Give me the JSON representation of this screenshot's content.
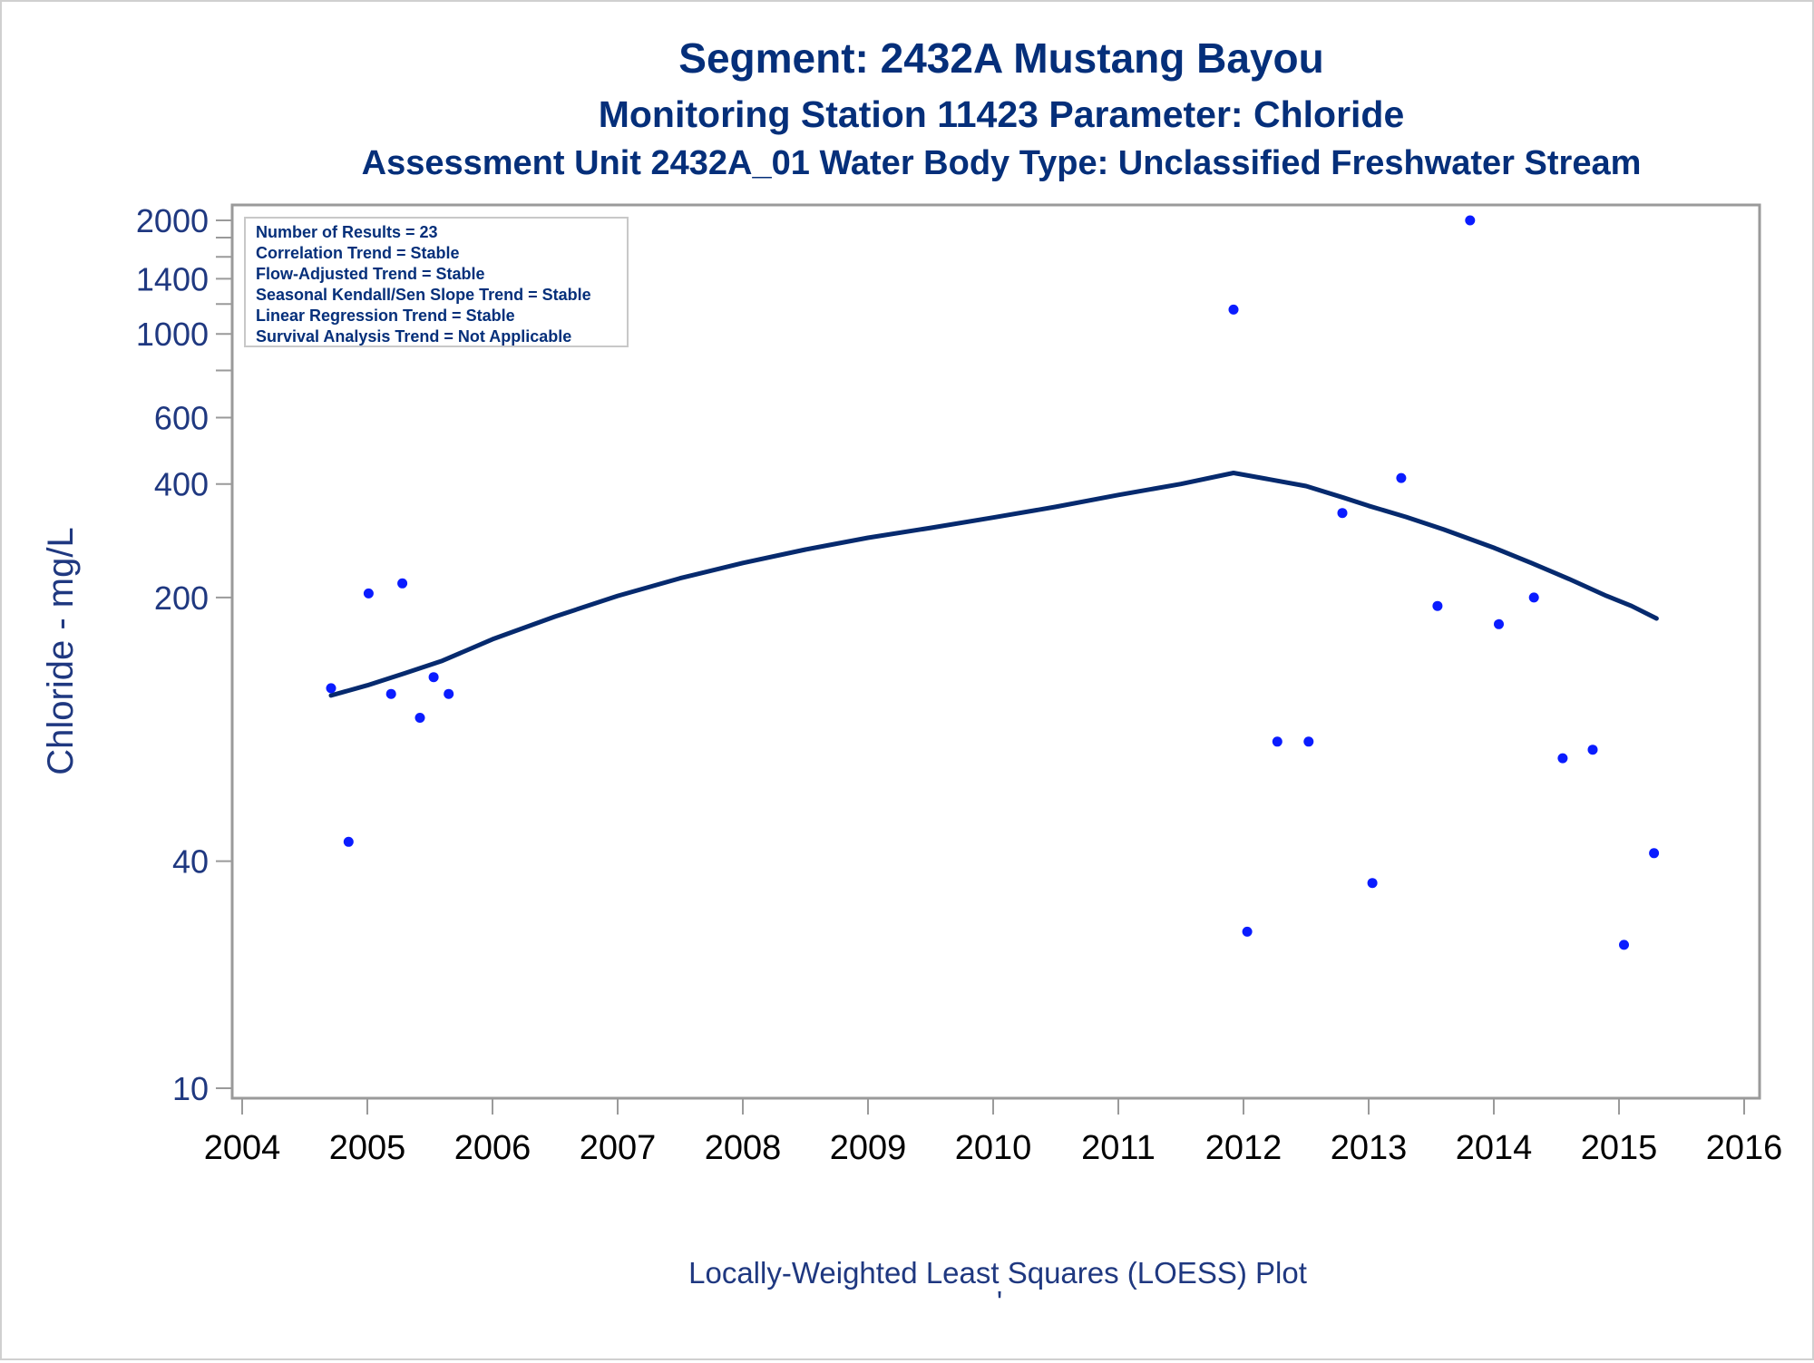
{
  "titles": {
    "line1": "Segment: 2432A  Mustang Bayou",
    "line2": "Monitoring Station 11423 Parameter: Chloride",
    "line3": "Assessment Unit 2432A_01   Water Body Type: Unclassified Freshwater Stream"
  },
  "inset_box": {
    "lines": [
      "Number of Results = 23",
      "Correlation Trend = Stable",
      "Flow-Adjusted Trend = Stable",
      "Seasonal Kendall/Sen Slope Trend = Stable",
      "Linear Regression Trend = Stable",
      "Survival Analysis Trend = Not Applicable"
    ]
  },
  "footer": {
    "caption": "Locally-Weighted Least Squares (LOESS) Plot",
    "mark": "'"
  },
  "colors": {
    "points": "#0a1cff",
    "loess": "#062a6e",
    "text": "#052f7a",
    "frame": "#9a9a9a"
  },
  "chart_data": {
    "type": "scatter",
    "title": "Segment: 2432A  Mustang Bayou",
    "xlabel": "",
    "ylabel": "Chloride - mg/L",
    "yscale": "log",
    "xlim": [
      2004,
      2016
    ],
    "ylim": [
      10,
      2000
    ],
    "x_ticks": [
      "2004",
      "2005",
      "2006",
      "2007",
      "2008",
      "2009",
      "2010",
      "2011",
      "2012",
      "2013",
      "2014",
      "2015",
      "2016"
    ],
    "y_ticks_labeled": [
      "10",
      "40",
      "200",
      "400",
      "600",
      "1000",
      "1400",
      "2000"
    ],
    "y_ticks_minor": [
      800,
      1200,
      1600,
      1800
    ],
    "grid": false,
    "points": [
      {
        "x": 2004.71,
        "y": 115
      },
      {
        "x": 2004.85,
        "y": 45
      },
      {
        "x": 2005.01,
        "y": 205
      },
      {
        "x": 2005.19,
        "y": 111
      },
      {
        "x": 2005.28,
        "y": 218
      },
      {
        "x": 2005.42,
        "y": 96
      },
      {
        "x": 2005.53,
        "y": 123
      },
      {
        "x": 2005.65,
        "y": 111
      },
      {
        "x": 2011.92,
        "y": 1160
      },
      {
        "x": 2012.03,
        "y": 26
      },
      {
        "x": 2012.27,
        "y": 83
      },
      {
        "x": 2012.52,
        "y": 83
      },
      {
        "x": 2012.79,
        "y": 335
      },
      {
        "x": 2013.03,
        "y": 35
      },
      {
        "x": 2013.26,
        "y": 415
      },
      {
        "x": 2013.55,
        "y": 190
      },
      {
        "x": 2013.81,
        "y": 2000
      },
      {
        "x": 2014.04,
        "y": 170
      },
      {
        "x": 2014.32,
        "y": 200
      },
      {
        "x": 2014.55,
        "y": 75
      },
      {
        "x": 2014.79,
        "y": 79
      },
      {
        "x": 2015.04,
        "y": 24
      },
      {
        "x": 2015.28,
        "y": 42
      }
    ],
    "series": [
      {
        "type": "line",
        "x": [
          2004.71,
          2005.0,
          2005.3,
          2005.6,
          2006.0,
          2006.5,
          2007.0,
          2007.5,
          2008.0,
          2008.5,
          2009.0,
          2009.5,
          2010.0,
          2010.5,
          2011.0,
          2011.5,
          2011.92,
          2012.2,
          2012.5,
          2012.8,
          2013.0,
          2013.3,
          2013.6,
          2014.0,
          2014.3,
          2014.6,
          2014.9,
          2015.1,
          2015.3
        ],
        "y": [
          110,
          117,
          126,
          136,
          155,
          178,
          202,
          225,
          247,
          268,
          288,
          306,
          326,
          348,
          374,
          400,
          428,
          412,
          395,
          368,
          350,
          327,
          303,
          271,
          247,
          224,
          202,
          190,
          176
        ]
      }
    ]
  }
}
